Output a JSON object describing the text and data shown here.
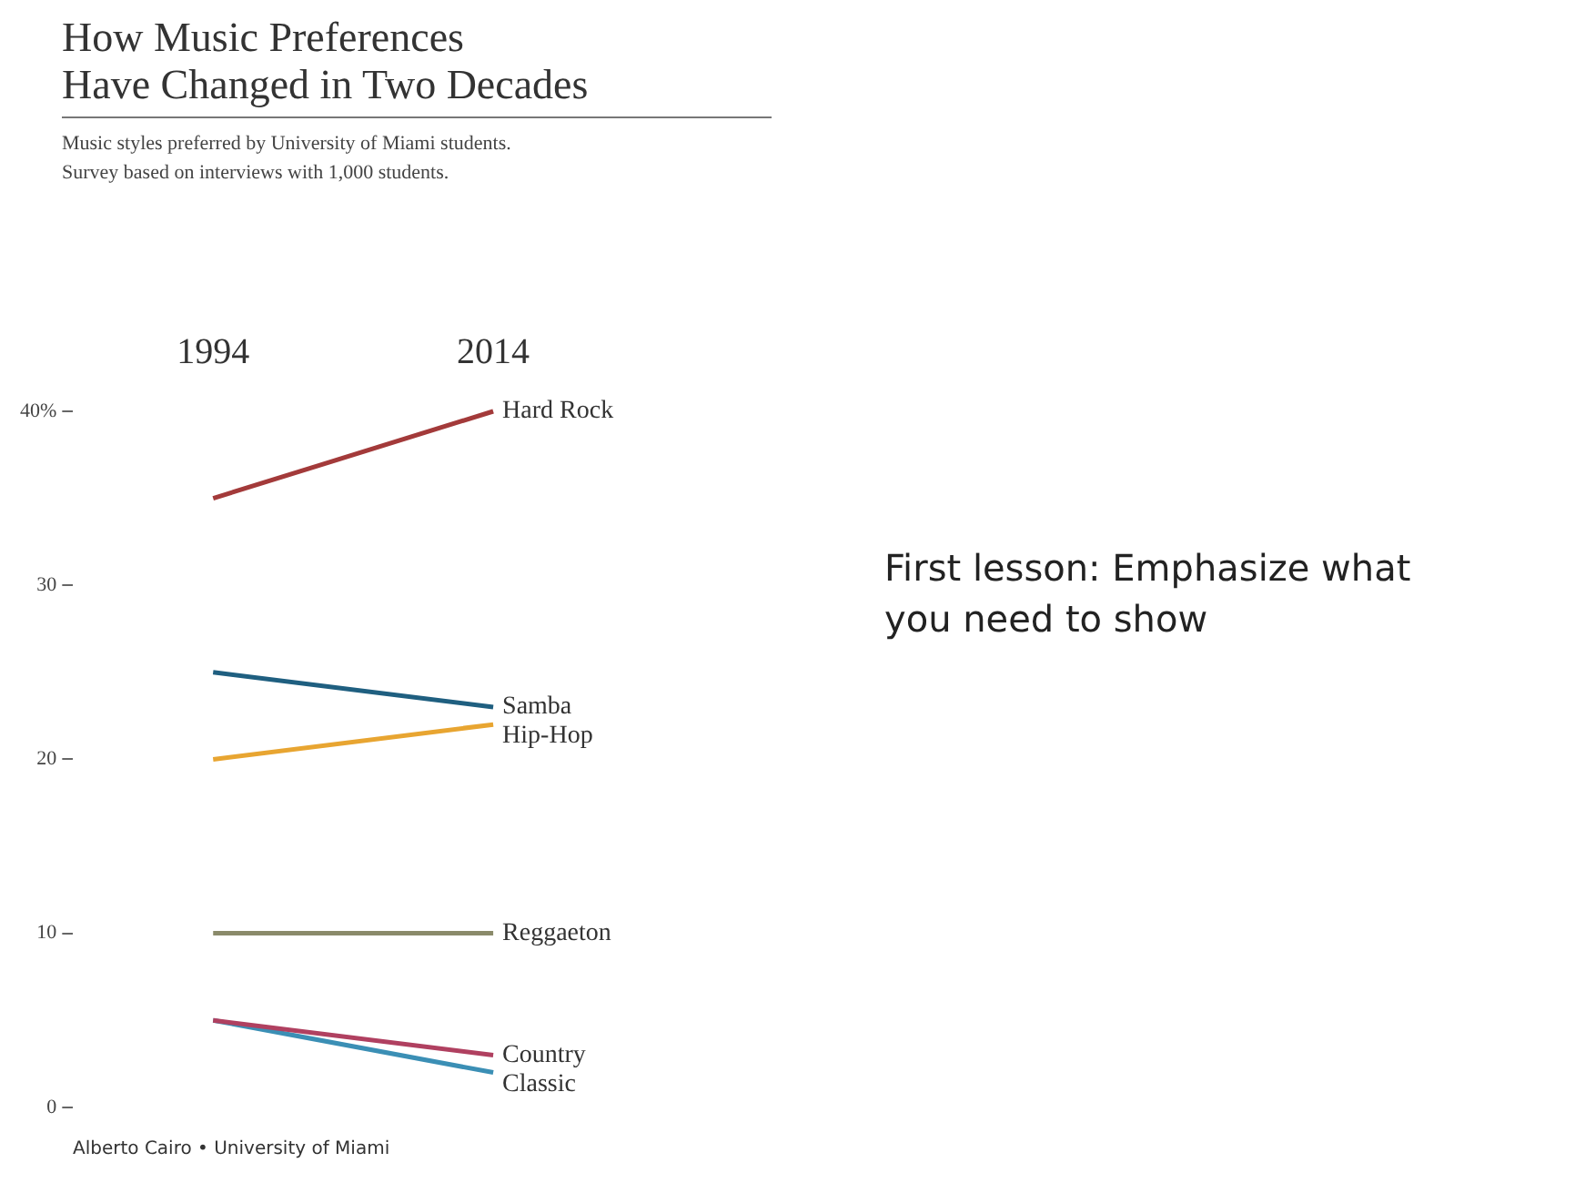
{
  "chart_data": {
    "type": "line",
    "title": "How Music Preferences\nHave Changed in Two Decades",
    "subtitle": "Music styles preferred by University of Miami students.\nSurvey based on interviews with 1,000 students.",
    "categories": [
      "1994",
      "2014"
    ],
    "series": [
      {
        "name": "Hard Rock",
        "color": "#a33a3a",
        "values": [
          35,
          40
        ]
      },
      {
        "name": "Samba",
        "color": "#1f5f80",
        "values": [
          25,
          23
        ]
      },
      {
        "name": "Hip-Hop",
        "color": "#e8a531",
        "values": [
          20,
          22
        ]
      },
      {
        "name": "Reggaeton",
        "color": "#8a8a6a",
        "values": [
          10,
          10
        ]
      },
      {
        "name": "Country",
        "color": "#b04060",
        "values": [
          5,
          3
        ]
      },
      {
        "name": "Classic",
        "color": "#3b8fb5",
        "values": [
          5,
          2
        ]
      }
    ],
    "ylim": [
      0,
      40
    ],
    "yticks": [
      0,
      10,
      20,
      30,
      {
        "value": 40,
        "label": "40%"
      }
    ],
    "grid": false,
    "legend": false,
    "marker": "none",
    "line_style": "solid",
    "annotations": [
      "First lesson: Emphasize what you need to show",
      "Alberto Cairo • University of Miami"
    ]
  }
}
